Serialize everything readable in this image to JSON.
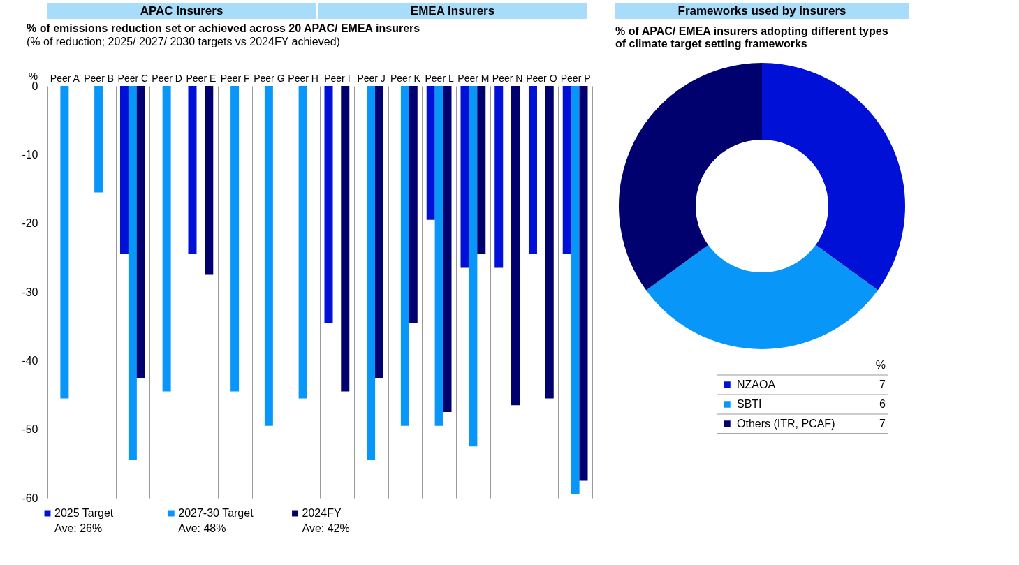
{
  "chart_data": [
    {
      "type": "bar",
      "title": "% of emissions reduction set or achieved across 20 APAC/ EMEA insurers",
      "subtitle": "(% of reduction; 2025/ 2027/ 2030 targets vs 2024FY achieved)",
      "ylabel": "%",
      "categories": [
        "Peer A",
        "Peer B",
        "Peer C",
        "Peer D",
        "Peer E",
        "Peer F",
        "Peer G",
        "Peer H",
        "Peer I",
        "Peer J",
        "Peer K",
        "Peer L",
        "Peer M",
        "Peer N",
        "Peer O",
        "Peer P"
      ],
      "series": [
        {
          "name": "2025 Target",
          "color": "#0010d6",
          "values": [
            null,
            null,
            -24.5,
            null,
            -24.5,
            null,
            null,
            null,
            -34.5,
            null,
            null,
            -19.5,
            -26.5,
            -26.5,
            -24.5,
            -24.5
          ]
        },
        {
          "name": "2027-30 Target",
          "color": "#0896f8",
          "values": [
            -45.5,
            -15.5,
            -54.5,
            -44.5,
            null,
            -44.5,
            -49.5,
            -45.5,
            null,
            -54.5,
            -49.5,
            -49.5,
            -52.5,
            null,
            null,
            -59.5
          ]
        },
        {
          "name": "2024FY",
          "color": "#00006f",
          "values": [
            null,
            null,
            -42.5,
            null,
            -27.5,
            null,
            null,
            null,
            -44.5,
            -42.5,
            -34.5,
            -47.5,
            -24.5,
            -46.5,
            -45.5,
            -57.5
          ]
        }
      ],
      "ylim": [
        -60,
        0
      ],
      "yticks": [
        0,
        -10,
        -20,
        -30,
        -40,
        -50,
        -60
      ],
      "grid": "x",
      "legend": "bottom",
      "annotations": [
        "APAC Insurers",
        "EMEA Insurers",
        "Ave: 26%",
        "Ave: 48%",
        "Ave: 42%"
      ]
    },
    {
      "type": "donut",
      "title": "Frameworks used by insurers",
      "subtitle": "% of APAC/ EMEA insurers adopting different types of climate target setting frameworks",
      "categories": [
        "NZAOA",
        "SBTI",
        "Others (ITR, PCAF)"
      ],
      "values": [
        7,
        6,
        7
      ],
      "colors": [
        "#0010d6",
        "#0896f8",
        "#00006f"
      ],
      "legend_title": "%",
      "legend": "bottom right",
      "data_labels": true
    }
  ]
}
